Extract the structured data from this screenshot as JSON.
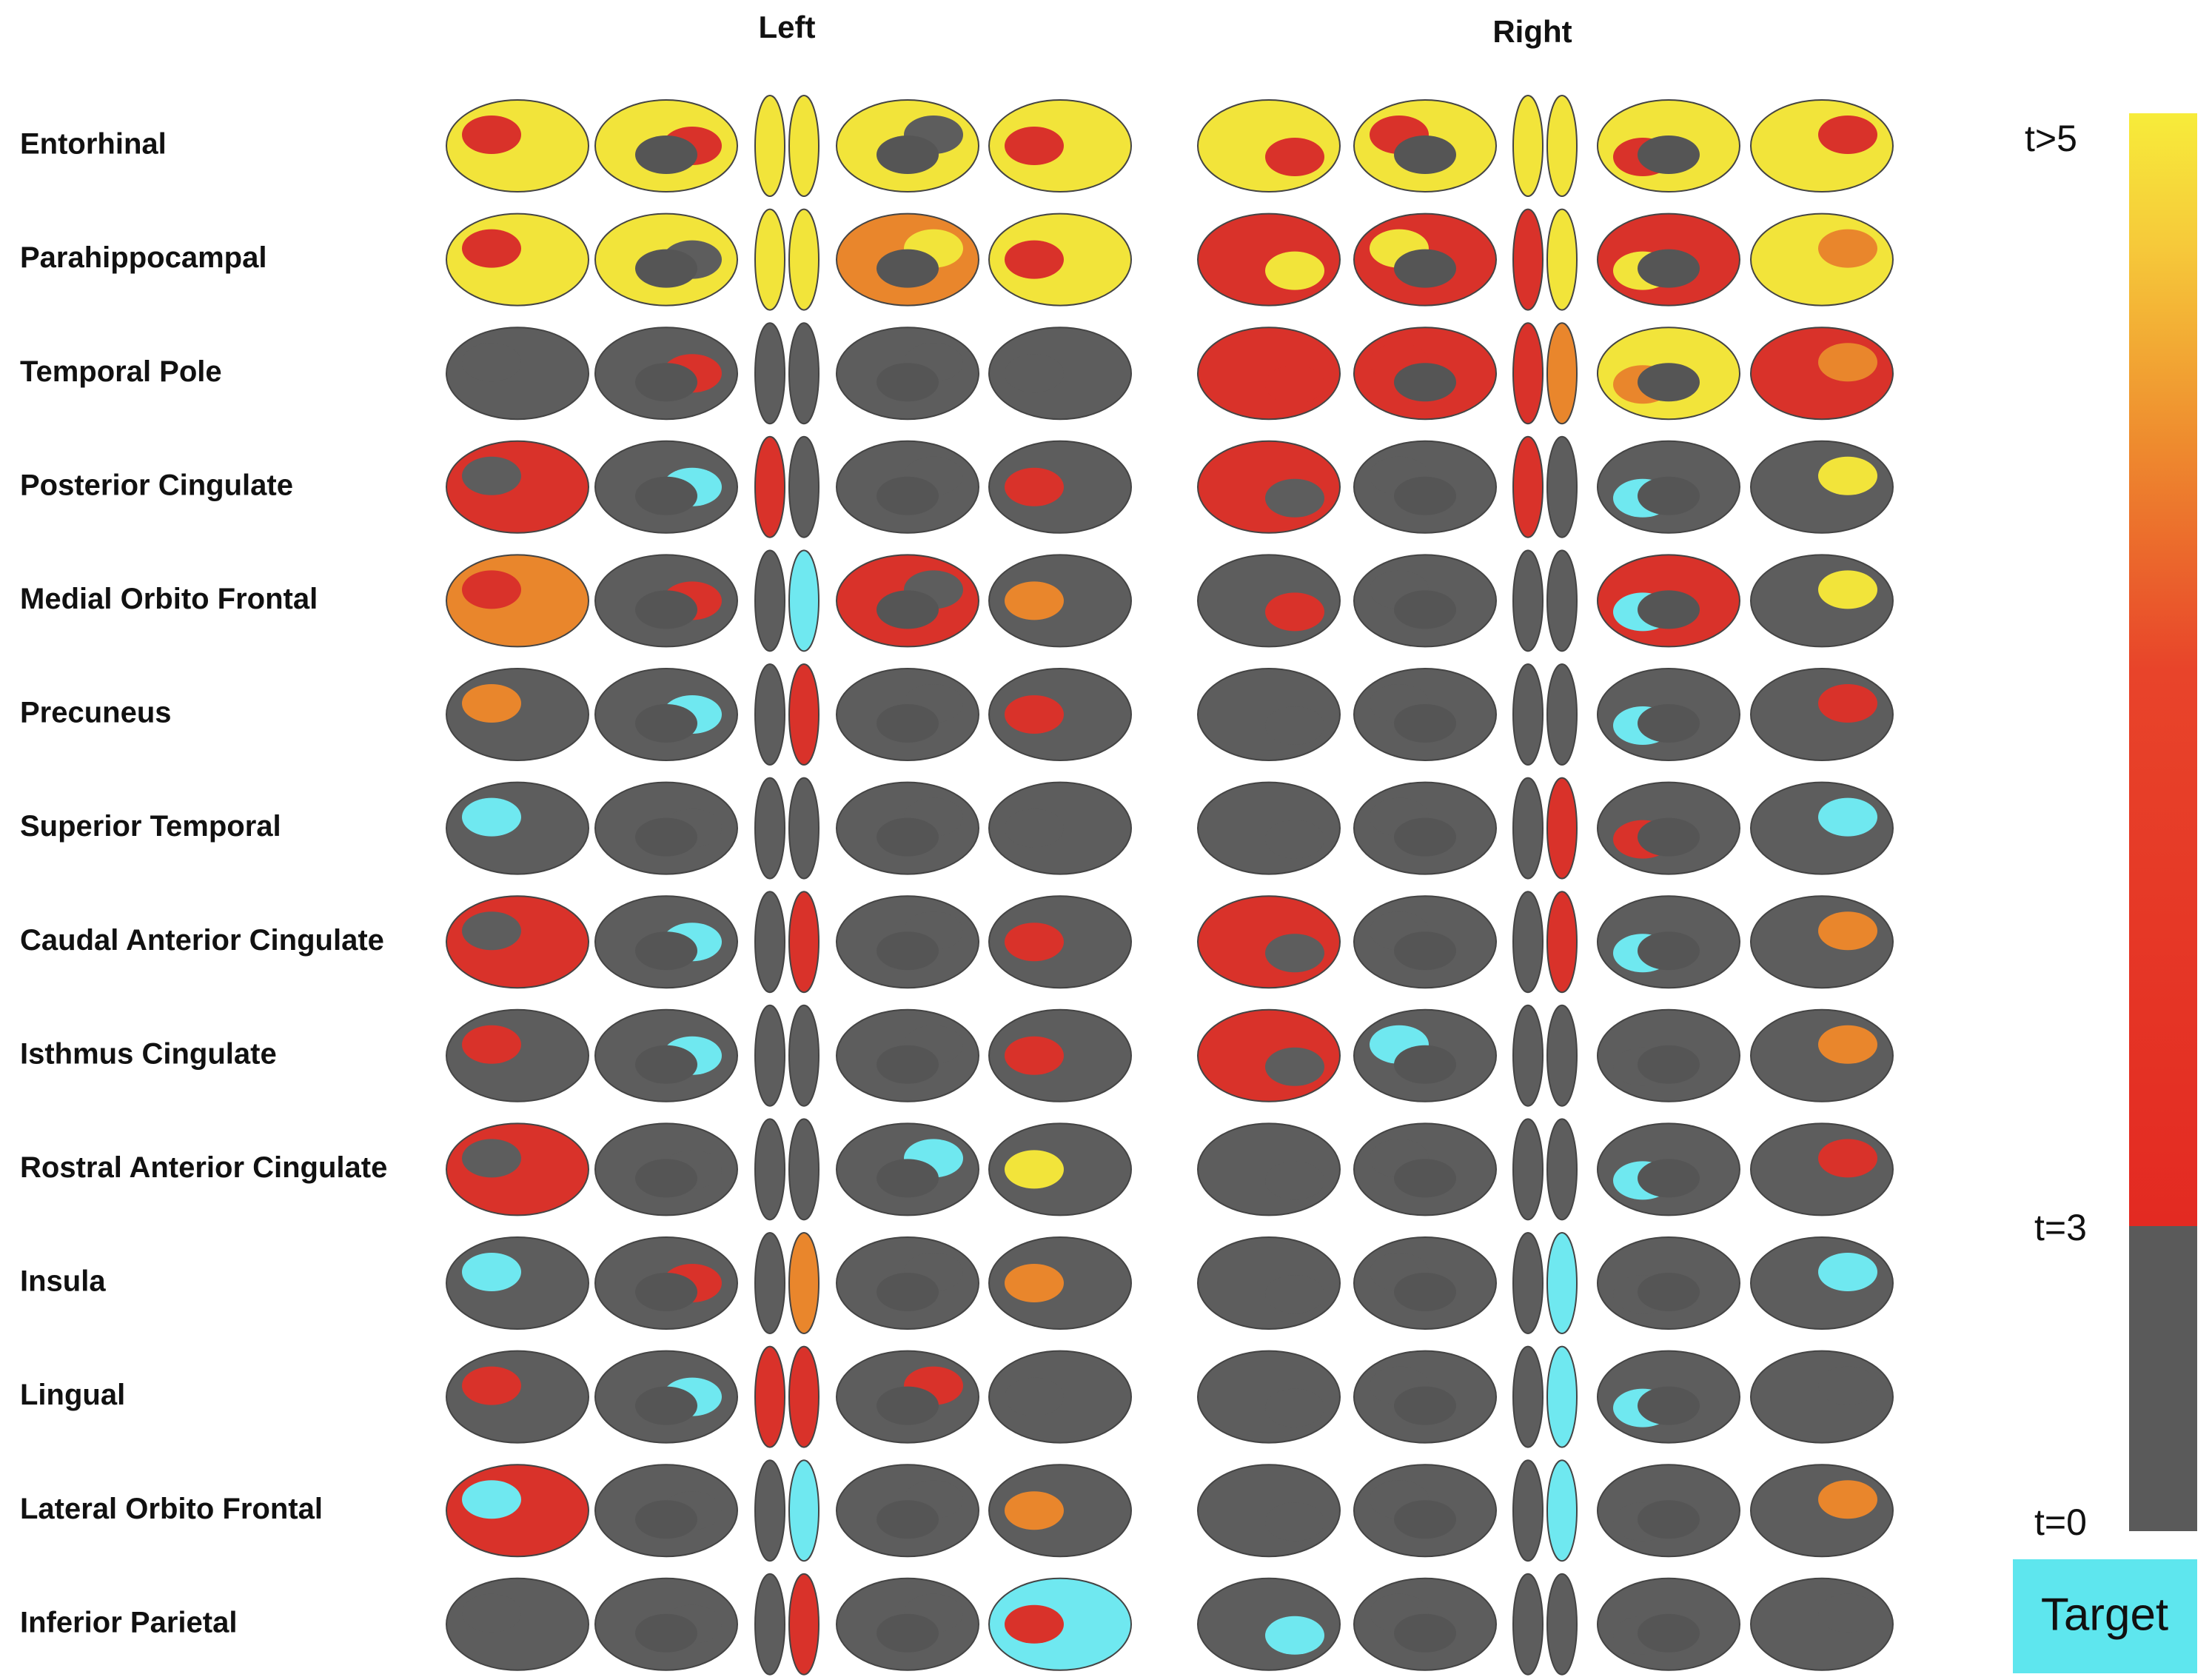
{
  "header": {
    "left": "Left",
    "right": "Right"
  },
  "rows": [
    "Entorhinal",
    "Parahippocampal",
    "Temporal Pole",
    "Posterior Cingulate",
    "Medial Orbito Frontal",
    "Precuneus",
    "Superior Temporal",
    "Caudal Anterior Cingulate",
    "Isthmus Cingulate",
    "Rostral Anterior Cingulate",
    "Insula",
    "Lingual",
    "Lateral Orbito Frontal",
    "Inferior Parietal"
  ],
  "colorbar": {
    "top": "t>5",
    "mid": "t=3",
    "bottom": "t=0",
    "target": "Target"
  }
}
